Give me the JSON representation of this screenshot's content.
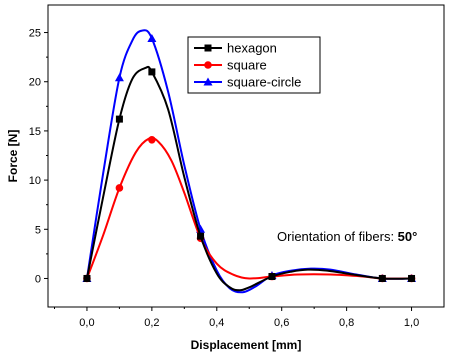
{
  "chart_data": {
    "type": "line",
    "xlabel": "Displacement [mm]",
    "ylabel": "Force [N]",
    "xlim": [
      -0.12,
      1.1
    ],
    "ylim": [
      -2.9,
      27.8
    ],
    "x_ticks": [
      "0,0",
      "0,2",
      "0,4",
      "0,6",
      "0,8",
      "1,0"
    ],
    "y_ticks": [
      "0",
      "5",
      "10",
      "15",
      "20",
      "25"
    ],
    "legend_position": "top-right",
    "grid": false,
    "annotation": {
      "text": "Orientation of fibers: ",
      "value": "50°"
    },
    "series": [
      {
        "name": "hexagon",
        "color": "#000000",
        "marker": "square",
        "points": [
          [
            0.0,
            0.0
          ],
          [
            0.1,
            16.2
          ],
          [
            0.2,
            21.0
          ],
          [
            0.35,
            4.3
          ],
          [
            0.57,
            0.2
          ],
          [
            0.91,
            0.0
          ],
          [
            1.0,
            0.0
          ]
        ],
        "curve": [
          [
            0.0,
            0.0
          ],
          [
            0.05,
            8.3
          ],
          [
            0.1,
            16.2
          ],
          [
            0.14,
            20.3
          ],
          [
            0.18,
            21.4
          ],
          [
            0.2,
            21.0
          ],
          [
            0.25,
            17.2
          ],
          [
            0.3,
            10.3
          ],
          [
            0.35,
            4.3
          ],
          [
            0.4,
            0.5
          ],
          [
            0.44,
            -0.9
          ],
          [
            0.47,
            -1.2
          ],
          [
            0.5,
            -0.9
          ],
          [
            0.57,
            0.2
          ],
          [
            0.63,
            0.7
          ],
          [
            0.68,
            0.9
          ],
          [
            0.74,
            0.8
          ],
          [
            0.82,
            0.4
          ],
          [
            0.91,
            0.0
          ],
          [
            1.0,
            0.0
          ]
        ]
      },
      {
        "name": "square",
        "color": "#ff0000",
        "marker": "circle",
        "points": [
          [
            0.0,
            0.0
          ],
          [
            0.1,
            9.2
          ],
          [
            0.2,
            14.1
          ],
          [
            0.35,
            4.1
          ],
          [
            0.57,
            0.2
          ],
          [
            0.91,
            0.0
          ],
          [
            1.0,
            0.0
          ]
        ],
        "curve": [
          [
            0.0,
            0.0
          ],
          [
            0.05,
            4.4
          ],
          [
            0.1,
            9.2
          ],
          [
            0.15,
            12.8
          ],
          [
            0.19,
            14.2
          ],
          [
            0.22,
            13.9
          ],
          [
            0.26,
            12.0
          ],
          [
            0.3,
            8.7
          ],
          [
            0.35,
            4.1
          ],
          [
            0.4,
            1.5
          ],
          [
            0.45,
            0.4
          ],
          [
            0.5,
            0.0
          ],
          [
            0.57,
            0.2
          ],
          [
            0.65,
            0.4
          ],
          [
            0.75,
            0.4
          ],
          [
            0.85,
            0.2
          ],
          [
            0.91,
            0.0
          ],
          [
            1.0,
            0.0
          ]
        ]
      },
      {
        "name": "square-circle",
        "color": "#0000ff",
        "marker": "triangle",
        "points": [
          [
            0.0,
            0.0
          ],
          [
            0.1,
            20.4
          ],
          [
            0.2,
            24.4
          ],
          [
            0.35,
            5.0
          ],
          [
            0.57,
            0.3
          ],
          [
            0.91,
            0.0
          ],
          [
            1.0,
            0.0
          ]
        ],
        "curve": [
          [
            0.0,
            0.0
          ],
          [
            0.05,
            10.7
          ],
          [
            0.1,
            20.4
          ],
          [
            0.14,
            24.2
          ],
          [
            0.17,
            25.2
          ],
          [
            0.2,
            24.4
          ],
          [
            0.25,
            19.0
          ],
          [
            0.3,
            11.5
          ],
          [
            0.35,
            5.0
          ],
          [
            0.4,
            0.8
          ],
          [
            0.44,
            -1.0
          ],
          [
            0.48,
            -1.4
          ],
          [
            0.52,
            -0.8
          ],
          [
            0.57,
            0.3
          ],
          [
            0.63,
            0.8
          ],
          [
            0.69,
            1.0
          ],
          [
            0.75,
            0.9
          ],
          [
            0.83,
            0.4
          ],
          [
            0.91,
            0.0
          ],
          [
            1.0,
            0.0
          ]
        ]
      }
    ]
  }
}
